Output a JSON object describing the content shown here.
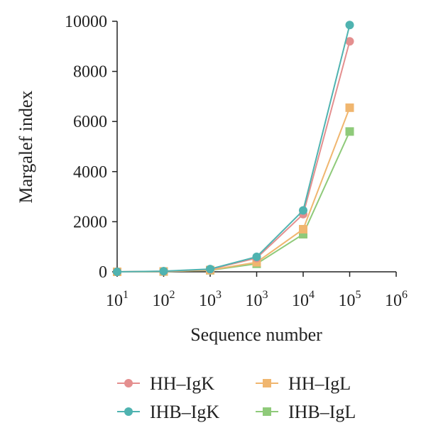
{
  "chart_data": {
    "type": "line",
    "xlabel": "Sequence number",
    "ylabel": "Margalef index",
    "x_tick_labels": [
      {
        "base": "10",
        "exp": "1"
      },
      {
        "base": "10",
        "exp": "2"
      },
      {
        "base": "10",
        "exp": "3"
      },
      {
        "base": "10",
        "exp": "3"
      },
      {
        "base": "10",
        "exp": "4"
      },
      {
        "base": "10",
        "exp": "5"
      },
      {
        "base": "10",
        "exp": "6"
      }
    ],
    "y_ticks": [
      0,
      2000,
      4000,
      6000,
      8000,
      10000
    ],
    "ylim": [
      0,
      10000
    ],
    "grid": false,
    "legend_position": "bottom",
    "series": [
      {
        "name": "HH–IgK",
        "color": "#e48f8f",
        "marker": "circle",
        "values": [
          0,
          20,
          100,
          550,
          2300,
          9200
        ]
      },
      {
        "name": "HH–IgL",
        "color": "#f0b66f",
        "marker": "square",
        "values": [
          0,
          15,
          70,
          380,
          1700,
          6550
        ]
      },
      {
        "name": "IHB–IgK",
        "color": "#4fb3b0",
        "marker": "circle",
        "values": [
          0,
          25,
          110,
          600,
          2450,
          9850
        ]
      },
      {
        "name": "IHB–IgL",
        "color": "#8fca7a",
        "marker": "square",
        "values": [
          0,
          10,
          60,
          320,
          1500,
          5600
        ]
      }
    ]
  }
}
